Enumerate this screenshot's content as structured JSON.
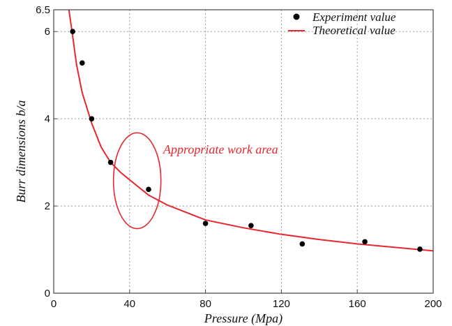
{
  "chart_data": {
    "type": "scatter",
    "title": "",
    "xlabel": "Pressure  (Mpa)",
    "ylabel": "Burr dimensions  b/a",
    "xlim": [
      0,
      200
    ],
    "ylim": [
      0,
      6.5
    ],
    "xticks": [
      0,
      40,
      80,
      120,
      160,
      200
    ],
    "yticks": [
      0,
      2,
      4,
      6,
      6.5
    ],
    "grid": true,
    "legend_position": "top-right",
    "series": [
      {
        "name": "Experiment value",
        "kind": "scatter",
        "color": "#000000",
        "points": [
          {
            "x": 10,
            "y": 6.0
          },
          {
            "x": 15,
            "y": 5.28
          },
          {
            "x": 20,
            "y": 4.0
          },
          {
            "x": 30,
            "y": 3.0
          },
          {
            "x": 50,
            "y": 2.38
          },
          {
            "x": 80,
            "y": 1.6
          },
          {
            "x": 104,
            "y": 1.55
          },
          {
            "x": 131,
            "y": 1.13
          },
          {
            "x": 164,
            "y": 1.18
          },
          {
            "x": 193,
            "y": 1.01
          }
        ]
      },
      {
        "name": "Theoretical value",
        "kind": "line",
        "color": "#e8262e",
        "points": [
          {
            "x": 8,
            "y": 6.5
          },
          {
            "x": 10,
            "y": 5.9
          },
          {
            "x": 12,
            "y": 5.25
          },
          {
            "x": 15,
            "y": 4.6
          },
          {
            "x": 20,
            "y": 3.9
          },
          {
            "x": 25,
            "y": 3.35
          },
          {
            "x": 30,
            "y": 3.0
          },
          {
            "x": 35,
            "y": 2.78
          },
          {
            "x": 40,
            "y": 2.6
          },
          {
            "x": 50,
            "y": 2.25
          },
          {
            "x": 60,
            "y": 2.02
          },
          {
            "x": 70,
            "y": 1.85
          },
          {
            "x": 80,
            "y": 1.68
          },
          {
            "x": 100,
            "y": 1.5
          },
          {
            "x": 120,
            "y": 1.35
          },
          {
            "x": 140,
            "y": 1.23
          },
          {
            "x": 160,
            "y": 1.13
          },
          {
            "x": 180,
            "y": 1.05
          },
          {
            "x": 200,
            "y": 0.97
          }
        ]
      }
    ],
    "annotation": {
      "text": "Appropriate work area",
      "color": "#e8262e",
      "ellipse_center": {
        "x": 44,
        "y": 2.58
      },
      "ellipse_radius_x": 12.5,
      "ellipse_radius_y": 1.1
    }
  }
}
